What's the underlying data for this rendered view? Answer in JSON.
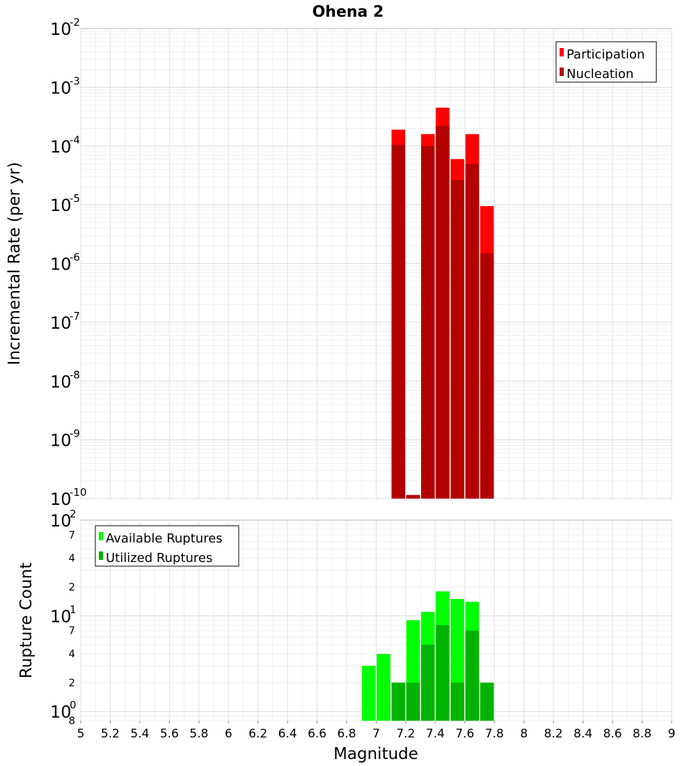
{
  "chart_data": [
    {
      "type": "bar",
      "title": "Ohena 2",
      "xlabel": "",
      "ylabel": "Incremental Rate (per yr)",
      "yscale": "log",
      "ylim": [
        1e-10,
        0.01
      ],
      "xlim": [
        5,
        9
      ],
      "grid": true,
      "legend_position": "top-right",
      "bar_overlay": true,
      "colors": {
        "Participation": "#ff0000",
        "Nucleation": "#b30000"
      },
      "x": [
        7.15,
        7.25,
        7.35,
        7.45,
        7.55,
        7.65,
        7.75
      ],
      "series": [
        {
          "name": "Participation",
          "values": [
            0.00019,
            1.15e-10,
            0.00016,
            0.00045,
            6e-05,
            0.00016,
            9.5e-06
          ]
        },
        {
          "name": "Nucleation",
          "values": [
            0.000105,
            1.15e-10,
            0.0001,
            0.00022,
            2.65e-05,
            4.9e-05,
            1.5e-06
          ]
        }
      ],
      "y_ticks": [
        {
          "base": "10",
          "exp": "-2"
        },
        {
          "base": "10",
          "exp": "-3"
        },
        {
          "base": "10",
          "exp": "-4"
        },
        {
          "base": "10",
          "exp": "-5"
        },
        {
          "base": "10",
          "exp": "-6"
        },
        {
          "base": "10",
          "exp": "-7"
        },
        {
          "base": "10",
          "exp": "-8"
        },
        {
          "base": "10",
          "exp": "-9"
        },
        {
          "base": "10",
          "exp": "-10"
        }
      ]
    },
    {
      "type": "bar",
      "title": "",
      "xlabel": "Magnitude",
      "ylabel": "Rupture Count",
      "yscale": "log",
      "ylim": [
        0.8,
        100
      ],
      "xlim": [
        5,
        9
      ],
      "grid": true,
      "legend_position": "top-left",
      "bar_overlay": true,
      "colors": {
        "Available Ruptures": "#00ff00",
        "Utilized Ruptures": "#00b300"
      },
      "x": [
        6.95,
        7.05,
        7.15,
        7.25,
        7.35,
        7.45,
        7.55,
        7.65,
        7.75
      ],
      "series": [
        {
          "name": "Available Ruptures",
          "values": [
            3,
            4,
            2,
            9,
            11,
            18,
            15,
            14,
            2
          ]
        },
        {
          "name": "Utilized Ruptures",
          "values": [
            0,
            0,
            2,
            2,
            5,
            8,
            2,
            7,
            2
          ]
        }
      ],
      "y_ticks": [
        {
          "label": "10",
          "exp": "2"
        },
        {
          "label": "7",
          "exp": ""
        },
        {
          "label": "4",
          "exp": ""
        },
        {
          "label": "2",
          "exp": ""
        },
        {
          "label": "10",
          "exp": "1"
        },
        {
          "label": "7",
          "exp": ""
        },
        {
          "label": "4",
          "exp": ""
        },
        {
          "label": "2",
          "exp": ""
        },
        {
          "label": "10",
          "exp": "0"
        },
        {
          "label": "8",
          "exp": ""
        }
      ],
      "x_ticks": [
        "5",
        "5.2",
        "5.4",
        "5.6",
        "5.8",
        "6",
        "6.2",
        "6.4",
        "6.6",
        "6.8",
        "7",
        "7.2",
        "7.4",
        "7.6",
        "7.8",
        "8",
        "8.2",
        "8.4",
        "8.6",
        "8.8",
        "9"
      ]
    }
  ]
}
